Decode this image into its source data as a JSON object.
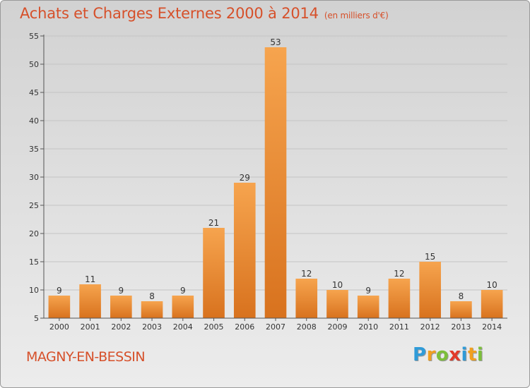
{
  "chart_data": {
    "type": "bar",
    "title": "Achats et Charges Externes 2000 à 2014",
    "unit_note": "(en milliers d'€)",
    "categories": [
      "2000",
      "2001",
      "2002",
      "2003",
      "2004",
      "2005",
      "2006",
      "2007",
      "2008",
      "2009",
      "2010",
      "2011",
      "2012",
      "2013",
      "2014"
    ],
    "values": [
      9,
      11,
      9,
      8,
      9,
      21,
      29,
      53,
      12,
      10,
      9,
      12,
      15,
      8,
      10
    ],
    "ylim": [
      5,
      55
    ],
    "yticks": [
      5,
      10,
      15,
      20,
      25,
      30,
      35,
      40,
      45,
      50,
      55
    ],
    "grid": true,
    "bar_color": "#f08a2c",
    "title_color": "#d6502a"
  },
  "footer": {
    "town": "MAGNY-EN-BESSIN",
    "logo_letters": [
      {
        "ch": "P",
        "color": "#2f9bd8"
      },
      {
        "ch": "r",
        "color": "#f0a020"
      },
      {
        "ch": "o",
        "color": "#7cbf3a"
      },
      {
        "ch": "x",
        "color": "#e23a2a"
      },
      {
        "ch": "i",
        "color": "#2f9bd8"
      },
      {
        "ch": "t",
        "color": "#f0a020"
      },
      {
        "ch": "i",
        "color": "#7cbf3a"
      }
    ]
  }
}
